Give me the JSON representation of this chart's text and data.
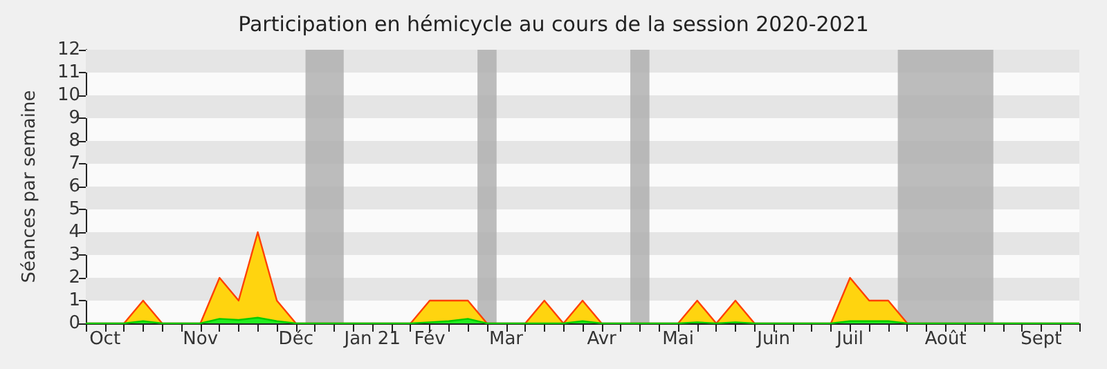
{
  "chart_data": {
    "type": "area",
    "title": "Participation en hémicycle au cours de la session 2020-2021",
    "ylabel": "Séances par semaine",
    "x": [
      "2020-09-28",
      "2020-10-05",
      "2020-10-12",
      "2020-10-19",
      "2020-10-26",
      "2020-11-02",
      "2020-11-09",
      "2020-11-16",
      "2020-11-23",
      "2020-11-30",
      "2020-12-07",
      "2020-12-14",
      "2020-12-21",
      "2020-12-28",
      "2021-01-04",
      "2021-01-11",
      "2021-01-18",
      "2021-01-25",
      "2021-02-01",
      "2021-02-08",
      "2021-02-15",
      "2021-02-22",
      "2021-03-01",
      "2021-03-08",
      "2021-03-15",
      "2021-03-22",
      "2021-03-29",
      "2021-04-05",
      "2021-04-12",
      "2021-04-19",
      "2021-04-26",
      "2021-05-03",
      "2021-05-10",
      "2021-05-17",
      "2021-05-24",
      "2021-05-31",
      "2021-06-07",
      "2021-06-14",
      "2021-06-21",
      "2021-06-28",
      "2021-07-05",
      "2021-07-12",
      "2021-07-19",
      "2021-07-26",
      "2021-08-02",
      "2021-08-09",
      "2021-08-16",
      "2021-08-23",
      "2021-08-30",
      "2021-09-06",
      "2021-09-13",
      "2021-09-20",
      "2021-09-27"
    ],
    "series": [
      {
        "color": "#ffd40f",
        "values": [
          0,
          0,
          0,
          1,
          0,
          0,
          0,
          2,
          1,
          4,
          1,
          0,
          0,
          0,
          0,
          0,
          0,
          0,
          1,
          1,
          1,
          0,
          0,
          0,
          1,
          0,
          1,
          0,
          0,
          0,
          0,
          0,
          1,
          0,
          1,
          0,
          0,
          0,
          0,
          0,
          2,
          1,
          1,
          0,
          0,
          0,
          0,
          0,
          0,
          0,
          0,
          0,
          0
        ]
      },
      {
        "color": "#22ee22",
        "values": [
          0,
          0,
          0,
          0.1,
          0,
          0,
          0,
          0.2,
          0.15,
          0.25,
          0.1,
          0,
          0,
          0,
          0,
          0,
          0,
          0,
          0.05,
          0.1,
          0.2,
          0,
          0,
          0,
          0,
          0,
          0.1,
          0,
          0,
          0,
          0,
          0,
          0.05,
          0,
          0.05,
          0,
          0,
          0,
          0,
          0,
          0.1,
          0.1,
          0.1,
          0,
          0,
          0,
          0,
          0,
          0,
          0,
          0,
          0,
          0
        ]
      }
    ],
    "xlim": [
      "2020-09-28",
      "2021-09-27"
    ],
    "xticks": [
      {
        "value": "2020-09-28",
        "label": null
      },
      {
        "value": "2020-10-05",
        "label": "Oct"
      },
      {
        "value": "2020-10-12",
        "label": null
      },
      {
        "value": "2020-10-19",
        "label": null
      },
      {
        "value": "2020-10-26",
        "label": null
      },
      {
        "value": "2020-11-02",
        "label": null
      },
      {
        "value": "2020-11-09",
        "label": "Nov"
      },
      {
        "value": "2020-11-16",
        "label": null
      },
      {
        "value": "2020-11-23",
        "label": null
      },
      {
        "value": "2020-11-30",
        "label": null
      },
      {
        "value": "2020-12-07",
        "label": null
      },
      {
        "value": "2020-12-14",
        "label": "Déc"
      },
      {
        "value": "2020-12-21",
        "label": null
      },
      {
        "value": "2020-12-28",
        "label": null
      },
      {
        "value": "2021-01-04",
        "label": null
      },
      {
        "value": "2021-01-11",
        "label": "Jan 21"
      },
      {
        "value": "2021-01-18",
        "label": null
      },
      {
        "value": "2021-01-25",
        "label": null
      },
      {
        "value": "2021-02-01",
        "label": "Fév"
      },
      {
        "value": "2021-02-08",
        "label": null
      },
      {
        "value": "2021-02-15",
        "label": null
      },
      {
        "value": "2021-02-22",
        "label": null
      },
      {
        "value": "2021-03-01",
        "label": "Mar"
      },
      {
        "value": "2021-03-08",
        "label": null
      },
      {
        "value": "2021-03-15",
        "label": null
      },
      {
        "value": "2021-03-22",
        "label": null
      },
      {
        "value": "2021-03-29",
        "label": null
      },
      {
        "value": "2021-04-05",
        "label": "Avr"
      },
      {
        "value": "2021-04-12",
        "label": null
      },
      {
        "value": "2021-04-19",
        "label": null
      },
      {
        "value": "2021-04-26",
        "label": null
      },
      {
        "value": "2021-05-03",
        "label": "Mai"
      },
      {
        "value": "2021-05-10",
        "label": null
      },
      {
        "value": "2021-05-17",
        "label": null
      },
      {
        "value": "2021-05-24",
        "label": null
      },
      {
        "value": "2021-05-31",
        "label": null
      },
      {
        "value": "2021-06-07",
        "label": "Juin"
      },
      {
        "value": "2021-06-14",
        "label": null
      },
      {
        "value": "2021-06-21",
        "label": null
      },
      {
        "value": "2021-06-28",
        "label": null
      },
      {
        "value": "2021-07-05",
        "label": "Juil"
      },
      {
        "value": "2021-07-12",
        "label": null
      },
      {
        "value": "2021-07-19",
        "label": null
      },
      {
        "value": "2021-07-26",
        "label": null
      },
      {
        "value": "2021-08-02",
        "label": null
      },
      {
        "value": "2021-08-09",
        "label": "Août"
      },
      {
        "value": "2021-08-16",
        "label": null
      },
      {
        "value": "2021-08-23",
        "label": null
      },
      {
        "value": "2021-08-30",
        "label": null
      },
      {
        "value": "2021-09-06",
        "label": null
      },
      {
        "value": "2021-09-13",
        "label": "Sept"
      },
      {
        "value": "2021-09-20",
        "label": null
      },
      {
        "value": "2021-09-27",
        "label": null
      }
    ],
    "ylim": [
      0,
      12
    ],
    "yticks": [
      0,
      1,
      2,
      3,
      4,
      5,
      6,
      7,
      8,
      9,
      10,
      11,
      12
    ],
    "bands": [
      {
        "axis": "y",
        "from": 1,
        "to": 2,
        "color": "#e5e5e5"
      },
      {
        "axis": "y",
        "from": 3,
        "to": 4,
        "color": "#e5e5e5"
      },
      {
        "axis": "y",
        "from": 5,
        "to": 6,
        "color": "#e5e5e5"
      },
      {
        "axis": "y",
        "from": 7,
        "to": 8,
        "color": "#e5e5e5"
      },
      {
        "axis": "y",
        "from": 9,
        "to": 10,
        "color": "#e5e5e5"
      },
      {
        "axis": "y",
        "from": 11,
        "to": 12,
        "color": "#e5e5e5"
      },
      {
        "axis": "x",
        "from": "2020-12-17T12:00",
        "to": "2020-12-31T12:00",
        "color": "#b0b0b0"
      },
      {
        "axis": "x",
        "from": "2021-02-18T12:00",
        "to": "2021-02-25T12:00",
        "color": "#b0b0b0"
      },
      {
        "axis": "x",
        "from": "2021-04-15T12:00",
        "to": "2021-04-22T12:00",
        "color": "#b0b0b0"
      },
      {
        "axis": "x",
        "from": "2021-07-22T12:00",
        "to": "2021-08-26T12:00",
        "color": "#b0b0b0"
      }
    ]
  }
}
